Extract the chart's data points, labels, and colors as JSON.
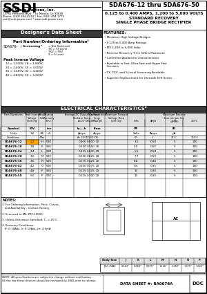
{
  "title_model": "SDA676-12 thru SDA676-50",
  "subtitle_line1": "0.125 to 0.400 AMPS, 1,200 to 5,000 VOLTS",
  "subtitle_line2": "STANDARD RECOVERY",
  "subtitle_line3": "SINGLE PHASE BRIDGE RECTIFIER",
  "company_name": "Solid State Devices, Inc.",
  "company_address": "14756 Firestone Blvd. * La Mirada, Ca 90638",
  "company_phone": "Phone: (562) 404-4474 * Fax: (562) 404-1773",
  "company_web": "ssdi@ssdi-power.com * www.ssdi-power.com",
  "designers_data_sheet": "Designer's Data Sheet",
  "part_number_title": "Part Number/Ordering Information¹",
  "part_prefix": "SDA676-",
  "screening_label": "Screening ²",
  "piv_title": "Peak Inverse Voltage",
  "piv_options": "12 = 1,200V, 18 = 1,800V\n24 = 2,400V, 30 = 3,000V\n36 = 3,600V, 42 = 4,200V\n48 = 4,800V, 50 = 5,000V",
  "features_title": "FEATURES:",
  "features": [
    "Miniature High Voltage Bridges",
    "0.125 to 0.400 Amp Ratings",
    "PIV 1,200 to 5,000 Volts",
    "Reverse Recovery Time 500ns Maximum",
    "Controlled Avalanche Characteristics",
    "Available in Fast, Ultra Fast and Hyper Fast\n   Versions",
    "TX, TXV, and S-Level Screening Available",
    "Superior Replacement for Unitrode 676 Series"
  ],
  "elec_char_title": "ELECTRICAL CHARACTERISTICS²",
  "table_data": [
    [
      "SDA676-12",
      "1.2",
      "H",
      "500",
      "0.400",
      "0.800",
      "30",
      "3.5",
      "0.50",
      "5",
      "150"
    ],
    [
      "SDA676-18",
      "1.8",
      "K",
      "500",
      "0.350",
      "0.550",
      "30",
      "4.0",
      "0.50",
      "5",
      "150"
    ],
    [
      "SDA676-24",
      "2.4",
      "L",
      "500",
      "0.325",
      "0.800",
      "20",
      "5.5",
      "0.50",
      "5",
      "150"
    ],
    [
      "SDA676-30",
      "3.0",
      "M",
      "500",
      "0.250",
      "0.625",
      "20",
      "7.7",
      "0.50",
      "5",
      "150"
    ],
    [
      "SDA676-36",
      "3.6",
      "N",
      "500",
      "0.175",
      "0.425",
      "20",
      "8.8",
      "0.40",
      "5",
      "150"
    ],
    [
      "SDA676-42",
      "4.2",
      "O",
      "500",
      "0.150",
      "0.375",
      "20",
      "9.5",
      "0.35",
      "5",
      "150"
    ],
    [
      "SDA676-48",
      "4.8",
      "P",
      "500",
      "0.125",
      "0.325",
      "20",
      "10",
      "0.30",
      "5",
      "150"
    ],
    [
      "SDA676-50",
      "5.0",
      "P",
      "500",
      "0.125",
      "0.300",
      "20",
      "10",
      "0.25",
      "5",
      "150"
    ]
  ],
  "notes": [
    "1. For Ordering Information, Price, Curves\n   and Availability - Contact Factory.",
    "2. Screened to MIL-PRF-19500.",
    "3. Unless Otherwise Specified, T₂ = 25°C",
    "4. Recovery Conditions:\n   IF: 0.10Adc, Ir: 0.10Adc, Irr: 4 5mA"
  ],
  "body_size_headers": [
    "Body Size",
    "J",
    "K",
    "L",
    "M",
    "N",
    "O",
    "P"
  ],
  "body_size_row1": "J/K/L, MAX",
  "body_size_vals": [
    "0.563\"",
    "0.668\"",
    "0.875\"",
    "1.125\"",
    "1.250\"",
    "1.375\"",
    "1.625\""
  ],
  "footer_left": "NOTE: All specifications are subject to change without notification.\nSS fax: fax these devices should be reviewed by SSDI prior to release.",
  "data_sheet_num": "DATA SHEET #: RA0076A",
  "doc_label": "DOC",
  "highlight_color": "#FFA500",
  "dark_header_bg": "#3A3A3A",
  "light_header_bg": "#E0E0E0"
}
